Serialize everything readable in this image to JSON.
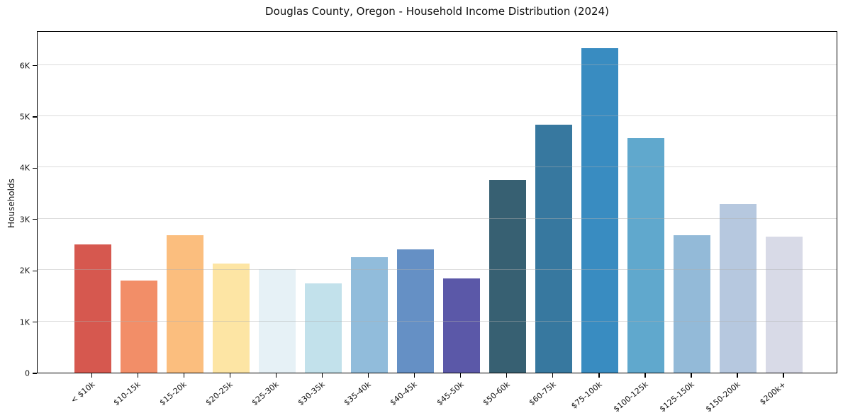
{
  "chart_data": {
    "type": "bar",
    "title": "Douglas County, Oregon - Household Income Distribution (2024)",
    "xlabel": "",
    "ylabel": "Households",
    "categories": [
      "< $10k",
      "$10-15k",
      "$15-20k",
      "$20-25k",
      "$25-30k",
      "$30-35k",
      "$35-40k",
      "$40-45k",
      "$45-50k",
      "$50-60k",
      "$60-75k",
      "$75-100k",
      "$100-125k",
      "$125-150k",
      "$150-200k",
      "$200k+"
    ],
    "values": [
      2500,
      1790,
      2680,
      2120,
      2020,
      1740,
      2250,
      2400,
      1830,
      3750,
      4830,
      6330,
      4570,
      2680,
      3290,
      2650
    ],
    "bar_colors": [
      "#d6584f",
      "#f28e68",
      "#fbbe7e",
      "#fde5a4",
      "#e6f1f6",
      "#c2e1eb",
      "#91bcdb",
      "#6590c5",
      "#5b58a8",
      "#376072",
      "#37789f",
      "#398cc1",
      "#60a8cd",
      "#93bad8",
      "#b6c8df",
      "#d8dae7"
    ],
    "ylim": [
      0,
      6670
    ],
    "yticks": [
      0,
      1000,
      2000,
      3000,
      4000,
      5000,
      6000
    ],
    "ytick_labels": [
      "0",
      "1K",
      "2K",
      "3K",
      "4K",
      "5K",
      "6K"
    ],
    "grid": "horizontal",
    "grid_over_bars": true,
    "legend": "none",
    "background_color": "#ffffff",
    "spine_color": "#000000",
    "text_color": "#111111"
  }
}
